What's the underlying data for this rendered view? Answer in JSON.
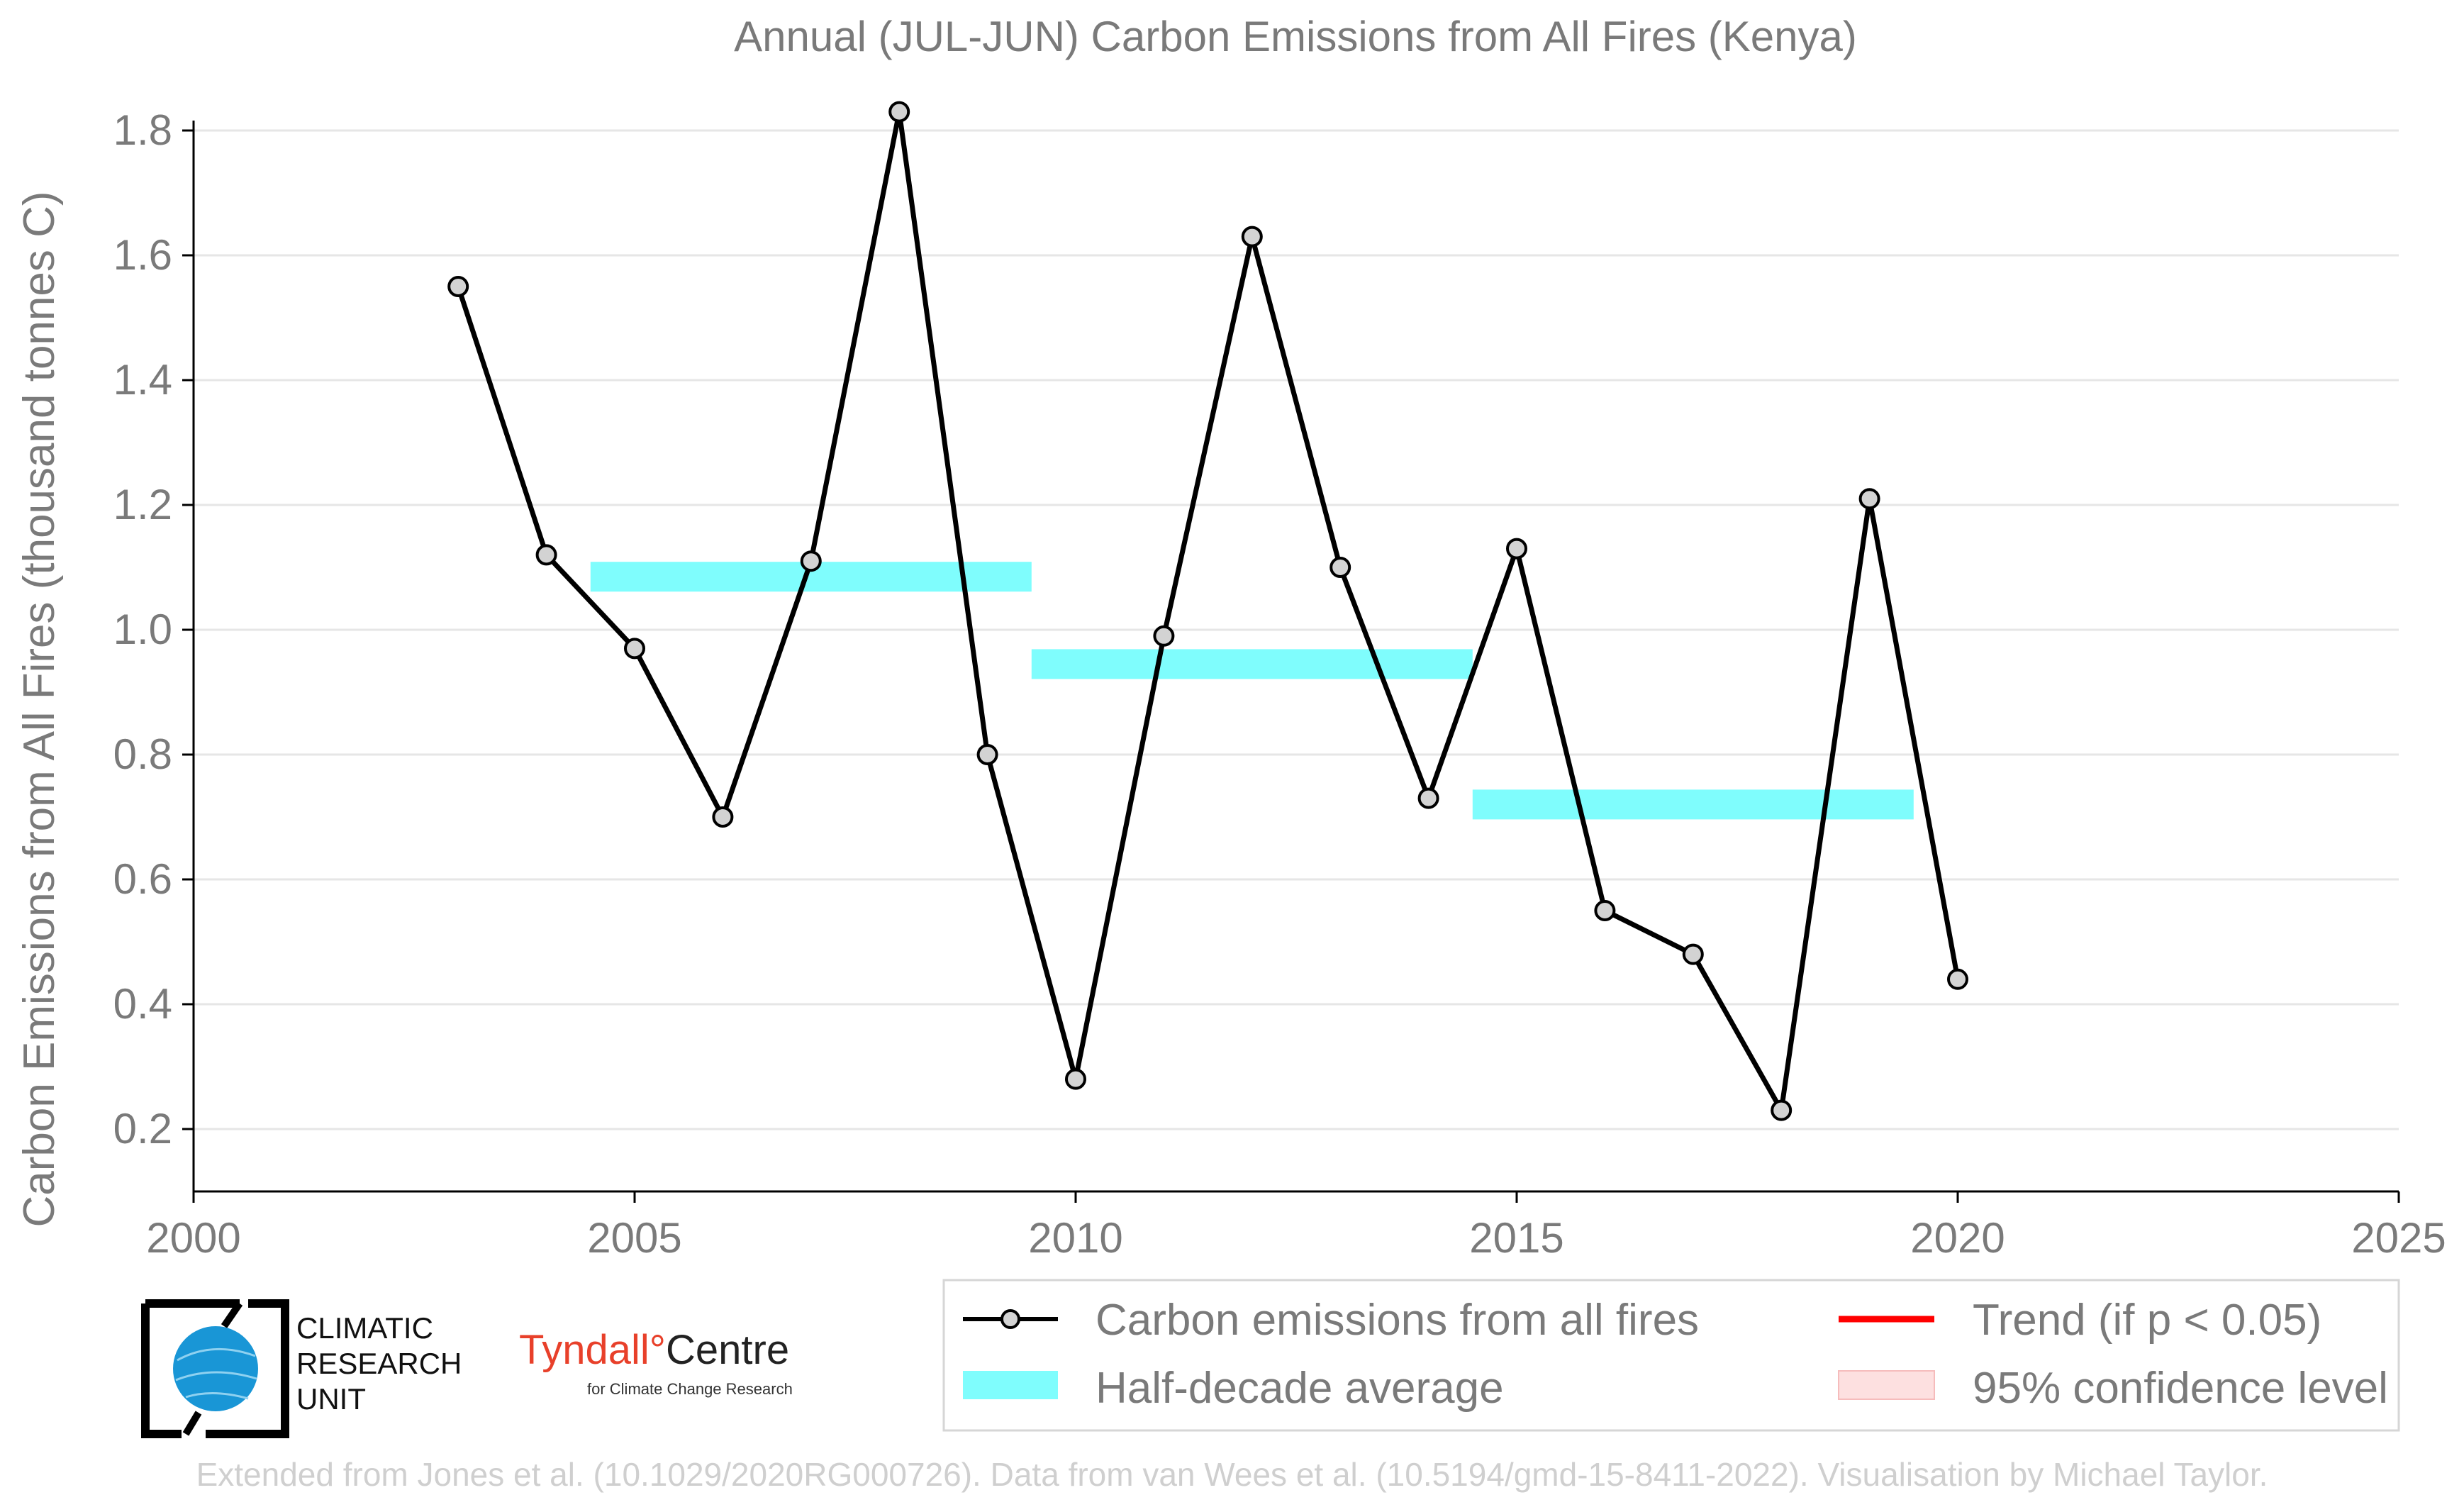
{
  "chart_data": {
    "type": "line",
    "title": "Annual (JUL-JUN) Carbon Emissions from All Fires (Kenya)",
    "xlabel": "",
    "ylabel": "Carbon Emissions from All Fires (thousand tonnes C)",
    "xlim": [
      2000,
      2025
    ],
    "ylim": [
      0.1,
      1.85
    ],
    "xticks": [
      2000,
      2005,
      2010,
      2015,
      2020,
      2025
    ],
    "yticks": [
      0.2,
      0.4,
      0.6,
      0.8,
      1.0,
      1.2,
      1.4,
      1.6,
      1.8
    ],
    "ytick_labels": [
      "0.2",
      "0.4",
      "0.6",
      "0.8",
      "1.0",
      "1.2",
      "1.4",
      "1.6",
      "1.8"
    ],
    "grid": "horizontal",
    "series": [
      {
        "name": "Carbon emissions from all fires",
        "color": "#000000",
        "marker_fill": "#d3d3d3",
        "x": [
          2003,
          2004,
          2005,
          2006,
          2007,
          2008,
          2009,
          2010,
          2011,
          2012,
          2013,
          2014,
          2015,
          2016,
          2017,
          2018,
          2019,
          2020
        ],
        "y": [
          1.55,
          1.12,
          0.97,
          0.7,
          1.11,
          1.83,
          0.8,
          0.28,
          0.99,
          1.63,
          1.1,
          0.73,
          1.13,
          0.55,
          0.48,
          0.23,
          1.21,
          0.44
        ]
      }
    ],
    "half_decade_average": {
      "name": "Half-decade average",
      "color": "#7ffdfd",
      "segments": [
        {
          "x_start": 2004.5,
          "x_end": 2009.5,
          "value": 1.085
        },
        {
          "x_start": 2009.5,
          "x_end": 2014.5,
          "value": 0.945
        },
        {
          "x_start": 2014.5,
          "x_end": 2019.5,
          "value": 0.72
        }
      ]
    },
    "legend": {
      "placement": "bottom-right",
      "entries": [
        {
          "label": "Carbon emissions from all fires",
          "kind": "line-marker",
          "color": "#000000"
        },
        {
          "label": "Trend (if p < 0.05)",
          "kind": "line",
          "color": "#ff0000"
        },
        {
          "label": "Half-decade average",
          "kind": "band",
          "color": "#7ffdfd"
        },
        {
          "label": "95% confidence level",
          "kind": "patch",
          "color": "#fde0e0"
        }
      ]
    }
  },
  "logos": {
    "cru_lines": [
      "CLIMATIC",
      "RESEARCH",
      "UNIT"
    ],
    "tyndall_name_a": "Tyndall",
    "tyndall_degree": "°",
    "tyndall_name_b": "Centre",
    "tyndall_sub": "for Climate Change Research"
  },
  "footer": "Extended from Jones et al. (10.1029/2020RG000726). Data from van Wees et al. (10.5194/gmd-15-8411-2022). Visualisation by Michael Taylor."
}
